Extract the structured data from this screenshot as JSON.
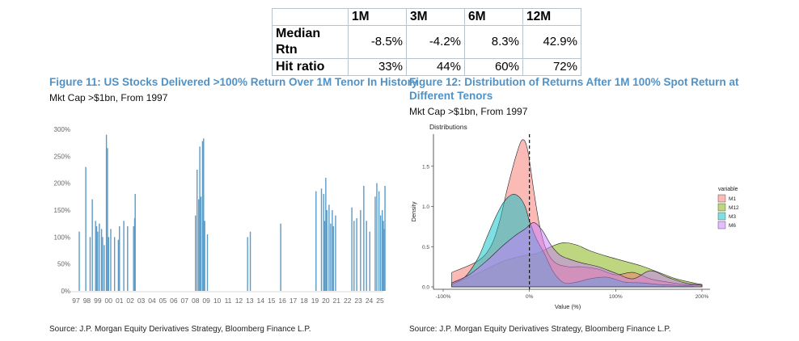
{
  "table": {
    "headers": [
      "",
      "1M",
      "3M",
      "6M",
      "12M"
    ],
    "rows": [
      {
        "label": "Median Rtn",
        "values": [
          "-8.5%",
          "-4.2%",
          "8.3%",
          "42.9%"
        ]
      },
      {
        "label": "Hit ratio",
        "values": [
          "33%",
          "44%",
          "60%",
          "72%"
        ]
      }
    ]
  },
  "figure11": {
    "title": "Figure 11: US Stocks Delivered >100% Return Over 1M Tenor In History",
    "subtitle": "Mkt Cap >$1bn, From 1997",
    "source": "Source: J.P. Morgan Equity Derivatives Strategy, Bloomberg Finance L.P."
  },
  "figure12": {
    "title_line1": "Figure 12: Distribution of Returns After 1M 100% Spot Return at",
    "title_line2": "Different Tenors",
    "subtitle": "Mkt Cap >$1bn, From 1997",
    "source": "Source: J.P. Morgan Equity Derivatives Strategy, Bloomberg Finance L.P."
  },
  "colors": {
    "title_blue": "#4f92c7",
    "bar_blue": "#5b9bc8",
    "M1": "#f8766d",
    "M12": "#7cae00",
    "M3": "#00bfc4",
    "M6": "#c77cff"
  },
  "chart_data": [
    {
      "type": "bar",
      "title": "",
      "xlabel": "",
      "ylabel": "",
      "ylim": [
        0,
        300
      ],
      "yticks": [
        "0%",
        "50%",
        "100%",
        "150%",
        "200%",
        "250%",
        "300%"
      ],
      "xticks": [
        "97",
        "98",
        "99",
        "00",
        "01",
        "02",
        "03",
        "04",
        "05",
        "06",
        "07",
        "08",
        "09",
        "10",
        "11",
        "12",
        "13",
        "14",
        "15",
        "16",
        "17",
        "18",
        "19",
        "20",
        "21",
        "22",
        "23",
        "24",
        "25"
      ],
      "grid": false,
      "x": [
        1997.3,
        1997.9,
        1998.3,
        1998.5,
        1998.8,
        1998.9,
        1999.0,
        1999.15,
        1999.35,
        1999.45,
        1999.6,
        1999.8,
        1999.9,
        2000.0,
        2000.2,
        2000.55,
        2000.9,
        2001.0,
        2001.4,
        2001.75,
        2002.3,
        2002.4,
        2002.45,
        2008.0,
        2008.15,
        2008.3,
        2008.4,
        2008.5,
        2008.65,
        2008.75,
        2008.85,
        2009.1,
        2012.8,
        2013.05,
        2015.85,
        2019.1,
        2019.6,
        2019.8,
        2019.9,
        2020.0,
        2020.1,
        2020.3,
        2020.45,
        2020.6,
        2020.7,
        2020.9,
        2022.4,
        2022.6,
        2022.85,
        2023.2,
        2023.5,
        2023.75,
        2024.05,
        2024.55,
        2024.7,
        2024.9,
        2025.05,
        2025.2,
        2025.3,
        2025.35,
        2025.45
      ],
      "values": [
        110,
        230,
        100,
        170,
        130,
        120,
        110,
        125,
        115,
        100,
        85,
        290,
        265,
        100,
        115,
        100,
        95,
        120,
        130,
        120,
        120,
        135,
        180,
        140,
        225,
        170,
        268,
        175,
        278,
        283,
        130,
        105,
        100,
        110,
        125,
        185,
        190,
        180,
        130,
        210,
        150,
        160,
        125,
        150,
        120,
        140,
        155,
        130,
        135,
        150,
        195,
        130,
        110,
        175,
        200,
        185,
        140,
        150,
        130,
        115,
        195
      ]
    },
    {
      "type": "area",
      "title": "Distributions",
      "xlabel": "Value (%)",
      "ylabel": "Density",
      "xlim": [
        -100,
        200
      ],
      "ylim": [
        0,
        1.9
      ],
      "xticks": [
        "-100%",
        "0%",
        "100%",
        "200%"
      ],
      "yticks": [
        "0.0",
        "0.5",
        "1.0",
        "1.5"
      ],
      "grid": false,
      "legend_title": "variable",
      "legend_position": "right",
      "annotations": [
        "dashed vertical line at 0%"
      ],
      "series": [
        {
          "name": "M1",
          "x": [
            -90,
            -60,
            -45,
            -35,
            -25,
            -15,
            -8,
            -2,
            5,
            12,
            20,
            30,
            45,
            60,
            80,
            100,
            120,
            140,
            160,
            180,
            200
          ],
          "y": [
            0.18,
            0.32,
            0.5,
            0.8,
            1.25,
            1.65,
            1.83,
            1.7,
            1.2,
            0.75,
            0.45,
            0.3,
            0.25,
            0.25,
            0.22,
            0.15,
            0.18,
            0.1,
            0.06,
            0.03,
            0.02
          ]
        },
        {
          "name": "M12",
          "x": [
            -90,
            -70,
            -50,
            -30,
            -10,
            0,
            10,
            25,
            40,
            55,
            70,
            90,
            110,
            130,
            150,
            170,
            190,
            200
          ],
          "y": [
            0.05,
            0.12,
            0.22,
            0.32,
            0.38,
            0.4,
            0.42,
            0.5,
            0.55,
            0.52,
            0.45,
            0.38,
            0.32,
            0.26,
            0.18,
            0.1,
            0.05,
            0.03
          ]
        },
        {
          "name": "M3",
          "x": [
            -90,
            -75,
            -60,
            -50,
            -40,
            -30,
            -20,
            -12,
            -5,
            0,
            8,
            18,
            28,
            40,
            55,
            70,
            90,
            110,
            130,
            150,
            170,
            190
          ],
          "y": [
            0.03,
            0.12,
            0.35,
            0.6,
            0.85,
            1.05,
            1.15,
            1.12,
            1.0,
            0.82,
            0.6,
            0.4,
            0.18,
            0.05,
            0.06,
            0.1,
            0.12,
            0.06,
            0.05,
            0.03,
            0.02,
            0.01
          ]
        },
        {
          "name": "M6",
          "x": [
            -90,
            -70,
            -50,
            -30,
            -15,
            -5,
            5,
            15,
            25,
            35,
            45,
            60,
            80,
            100,
            120,
            140,
            160,
            180,
            200
          ],
          "y": [
            0.05,
            0.15,
            0.32,
            0.52,
            0.65,
            0.72,
            0.8,
            0.7,
            0.52,
            0.4,
            0.35,
            0.3,
            0.25,
            0.17,
            0.1,
            0.2,
            0.12,
            0.05,
            0.02
          ]
        }
      ]
    }
  ]
}
